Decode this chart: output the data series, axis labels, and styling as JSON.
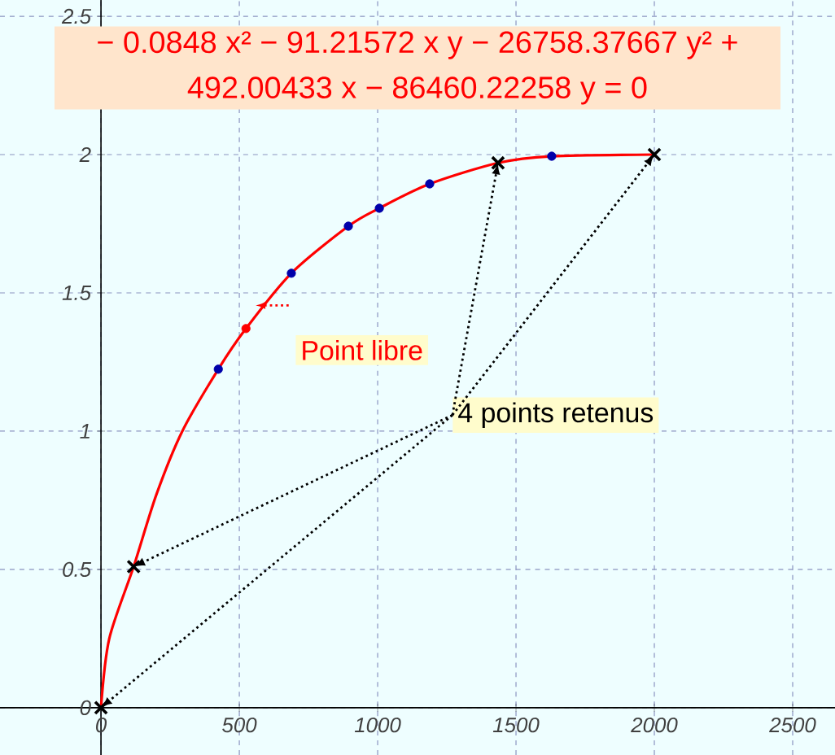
{
  "chart_data": {
    "type": "line",
    "xlim": [
      -365,
      2653
    ],
    "ylim": [
      -0.171,
      2.559
    ],
    "xticks": [
      0,
      500,
      1000,
      1500,
      2000,
      2500
    ],
    "yticks": [
      0,
      0.5,
      1,
      1.5,
      2,
      2.5
    ],
    "grid": true,
    "series": [
      {
        "color": "#ff0000",
        "line_style": "solid",
        "marker": "none",
        "x": [
          0,
          30,
          118,
          200,
          294,
          424,
          524,
          688,
          894,
          1006,
          1188,
          1435,
          1629,
          2000
        ],
        "values": [
          0,
          0.25,
          0.51,
          0.77,
          1,
          1.224,
          1.371,
          1.571,
          1.741,
          1.806,
          1.894,
          1.97,
          1.994,
          2
        ]
      },
      {
        "type": "scatter",
        "color": "#0000aa",
        "marker": "circle",
        "x": [
          424,
          688,
          894,
          1006,
          1188,
          1629
        ],
        "values": [
          1.224,
          1.571,
          1.741,
          1.806,
          1.894,
          1.994
        ]
      },
      {
        "type": "scatter",
        "color": "#ff0000",
        "marker": "circle",
        "x": [
          524
        ],
        "values": [
          1.371
        ]
      },
      {
        "type": "scatter",
        "color": "#000000",
        "marker": "cross",
        "x": [
          0,
          118,
          1435,
          2000
        ],
        "values": [
          0,
          0.51,
          1.97,
          2
        ]
      }
    ],
    "annotations": [
      "− 0.0848 x² − 91.21572 x y − 26758.37667 y² + 492.00433 x − 86460.22258 y = 0",
      {
        "text": "Point libre",
        "x": 524,
        "y": 1.371
      },
      {
        "text": "4 points retenus",
        "x": 1435,
        "y": 1.97
      }
    ]
  }
}
